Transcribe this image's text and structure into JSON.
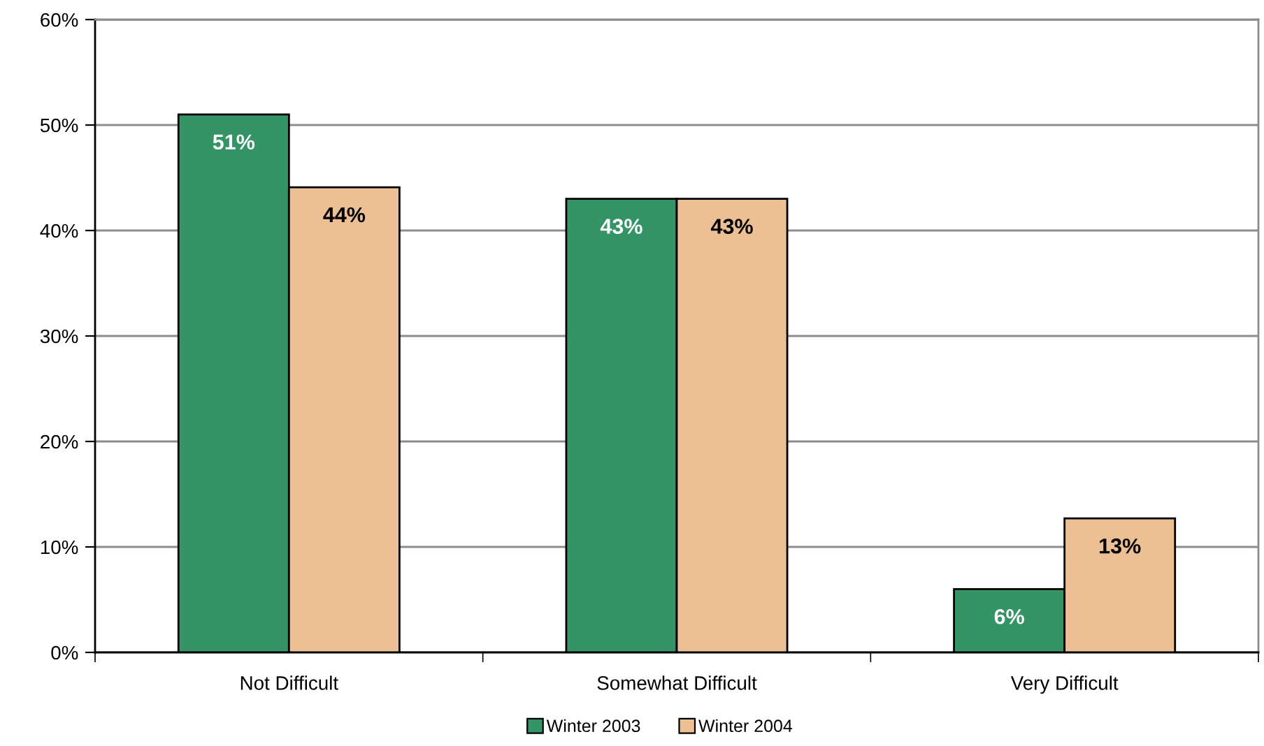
{
  "chart_data": {
    "type": "bar",
    "categories": [
      "Not Difficult",
      "Somewhat Difficult",
      "Very Difficult"
    ],
    "series": [
      {
        "name": "Winter 2003",
        "color": "#359466",
        "values": [
          51,
          43,
          6
        ],
        "value_labels": [
          "51%",
          "43%",
          "6%"
        ]
      },
      {
        "name": "Winter 2004",
        "color": "#ecbf95",
        "values": [
          44.1,
          43,
          12.7
        ],
        "value_labels": [
          "44%",
          "43%",
          "13%"
        ]
      }
    ],
    "ylim": [
      0,
      60
    ],
    "yticks": [
      {
        "value": 0,
        "label": "0%"
      },
      {
        "value": 10,
        "label": "10%"
      },
      {
        "value": 20,
        "label": "20%"
      },
      {
        "value": 30,
        "label": "30%"
      },
      {
        "value": 40,
        "label": "40%"
      },
      {
        "value": 50,
        "label": "50%"
      },
      {
        "value": 60,
        "label": "60%"
      }
    ],
    "grid": "y",
    "legend": "bottom"
  }
}
